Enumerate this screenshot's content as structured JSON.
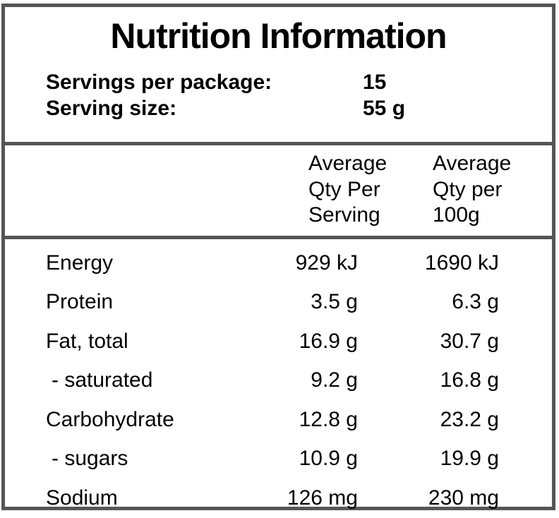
{
  "title": "Nutrition Information",
  "serving_info": {
    "servings_per_package_label": "Servings per package:",
    "servings_per_package_value": "15",
    "serving_size_label": "Serving size:",
    "serving_size_value": "55 g"
  },
  "table": {
    "header_per_serving": "Average\nQty Per\nServing",
    "header_per_100g": "Average\nQty per\n100g",
    "rows": [
      {
        "label": "Energy",
        "per_serving": "929 kJ",
        "per_100g": "1690 kJ"
      },
      {
        "label": "Protein",
        "per_serving": "3.5 g",
        "per_100g": "6.3 g"
      },
      {
        "label": "Fat, total",
        "per_serving": "16.9 g",
        "per_100g": "30.7 g"
      },
      {
        "label": "- saturated",
        "per_serving": "9.2 g",
        "per_100g": "16.8 g"
      },
      {
        "label": "Carbohydrate",
        "per_serving": "12.8 g",
        "per_100g": "23.2 g"
      },
      {
        "label": "- sugars",
        "per_serving": "10.9 g",
        "per_100g": "19.9 g"
      },
      {
        "label": "Sodium",
        "per_serving": "126 mg",
        "per_100g": "230 mg"
      }
    ]
  },
  "colors": {
    "border": "#555555",
    "text": "#000000",
    "background": "#ffffff"
  }
}
